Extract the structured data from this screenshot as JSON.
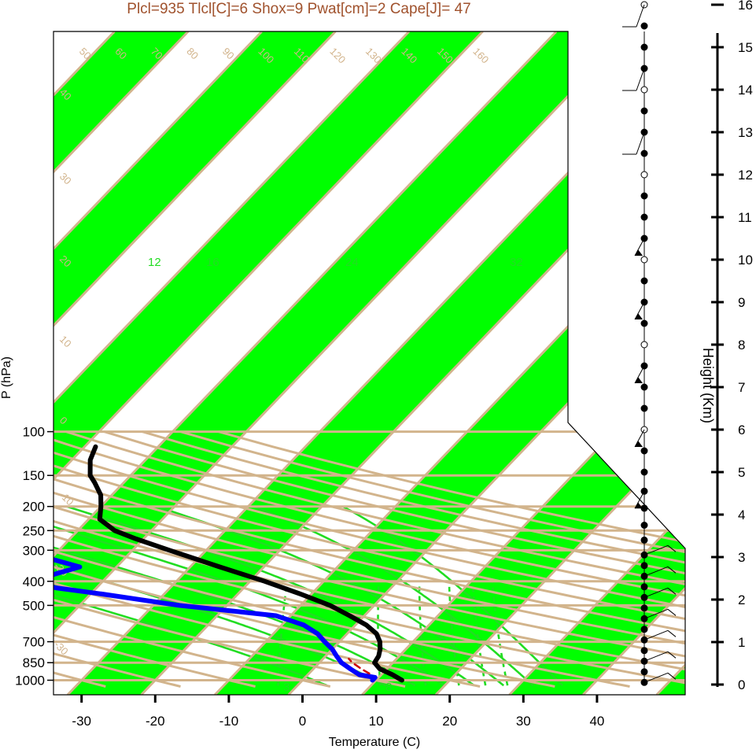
{
  "title": "Plcl=935 Tlcl[C]=6 Shox=9 Pwat[cm]=2 Cape[J]= 47",
  "colors": {
    "band": "#00ff00",
    "isoline": "#d2b48c",
    "temperature": "#000000",
    "dewpoint": "#0000ff",
    "parcel": "#cc0000",
    "moist_adiabat": "#22dd22",
    "title": "#a0522d"
  },
  "chart_data": {
    "type": "skew-t",
    "xlabel": "Temperature (C)",
    "ylabel": "P (hPa)",
    "y2label": "Height (Km)",
    "xlim": [
      -33,
      52
    ],
    "ylim": [
      1050,
      100
    ],
    "x_ticks": [
      "-30",
      "-20",
      "-10",
      "0",
      "10",
      "20",
      "30",
      "40"
    ],
    "p_ticks": [
      "100",
      "150",
      "200",
      "250",
      "300",
      "400",
      "500",
      "700",
      "850",
      "1000"
    ],
    "height_ticks": [
      "0",
      "1",
      "2",
      "3",
      "4",
      "5",
      "6",
      "7",
      "8",
      "9",
      "10",
      "11",
      "12",
      "13",
      "14",
      "15",
      "16"
    ],
    "temperature_profile": [
      {
        "p": 1000,
        "t": 13.5
      },
      {
        "p": 950,
        "t": 11.5
      },
      {
        "p": 900,
        "t": 9.0
      },
      {
        "p": 850,
        "t": 7.5
      },
      {
        "p": 800,
        "t": 7.2
      },
      {
        "p": 750,
        "t": 6.5
      },
      {
        "p": 700,
        "t": 5.5
      },
      {
        "p": 650,
        "t": 4.0
      },
      {
        "p": 600,
        "t": 1.5
      },
      {
        "p": 550,
        "t": -2.0
      },
      {
        "p": 500,
        "t": -6.0
      },
      {
        "p": 450,
        "t": -11.5
      },
      {
        "p": 400,
        "t": -18.0
      },
      {
        "p": 350,
        "t": -26.0
      },
      {
        "p": 300,
        "t": -35.0
      },
      {
        "p": 270,
        "t": -41.0
      },
      {
        "p": 250,
        "t": -45.0
      },
      {
        "p": 225,
        "t": -48.5
      },
      {
        "p": 200,
        "t": -50.0
      },
      {
        "p": 180,
        "t": -51.5
      },
      {
        "p": 160,
        "t": -54.0
      },
      {
        "p": 150,
        "t": -55.5
      },
      {
        "p": 130,
        "t": -57.5
      },
      {
        "p": 115,
        "t": -58.5
      }
    ],
    "dewpoint_profile": [
      {
        "p": 1000,
        "t": 9.5
      },
      {
        "p": 975,
        "t": 9.5
      },
      {
        "p": 950,
        "t": 7.0
      },
      {
        "p": 900,
        "t": 5.0
      },
      {
        "p": 850,
        "t": 3.0
      },
      {
        "p": 800,
        "t": 1.5
      },
      {
        "p": 750,
        "t": 0.0
      },
      {
        "p": 700,
        "t": -2.0
      },
      {
        "p": 650,
        "t": -4.0
      },
      {
        "p": 600,
        "t": -7.0
      },
      {
        "p": 550,
        "t": -12.0
      },
      {
        "p": 525,
        "t": -19.0
      },
      {
        "p": 500,
        "t": -26.5
      },
      {
        "p": 450,
        "t": -38.5
      },
      {
        "p": 425,
        "t": -45.5
      },
      {
        "p": 400,
        "t": -49.5
      },
      {
        "p": 375,
        "t": -47.5
      },
      {
        "p": 350,
        "t": -45.0
      },
      {
        "p": 320,
        "t": -51.0
      },
      {
        "p": 300,
        "t": -55.0
      },
      {
        "p": 270,
        "t": -61.0
      },
      {
        "p": 250,
        "t": -65.0
      },
      {
        "p": 230,
        "t": -69.0
      },
      {
        "p": 210,
        "t": -75.0
      },
      {
        "p": 200,
        "t": -78.0
      },
      {
        "p": 170,
        "t": -83.0
      },
      {
        "p": 150,
        "t": -86.0
      },
      {
        "p": 130,
        "t": -89.0
      },
      {
        "p": 115,
        "t": -91.0
      }
    ],
    "parcel_path": [
      {
        "p": 940,
        "t": 8.2
      },
      {
        "p": 900,
        "t": 6.5
      },
      {
        "p": 850,
        "t": 4.5
      },
      {
        "p": 820,
        "t": 3.5
      }
    ],
    "isotherm_labels": [
      "-30",
      "-20",
      "-10",
      "0",
      "10",
      "20",
      "30",
      "40",
      "50",
      "60",
      "70",
      "80",
      "90",
      "100",
      "110",
      "120",
      "130",
      "140",
      "150",
      "160"
    ],
    "right_isotherm_labels": [
      "-30",
      "-20",
      "-10",
      "0",
      "10",
      "20",
      "30"
    ],
    "left_isotherm_labels": [
      "40",
      "30",
      "20",
      "10",
      "0",
      "-10",
      "-20",
      "-30"
    ],
    "mixing_ratio_labels": [
      "3",
      "8",
      "12",
      "16",
      "24",
      "32"
    ],
    "wind_barb_heights_km": [
      0.05,
      0.3,
      0.55,
      0.8,
      1.05,
      1.3,
      1.55,
      1.8,
      2.05,
      2.3,
      2.55,
      2.8,
      3.05,
      3.4,
      3.75,
      4.15,
      4.55,
      5.0,
      5.5,
      6.0,
      6.5,
      7.0,
      7.5,
      8.0,
      8.5,
      9.0,
      9.5,
      10.0,
      10.5,
      11.0,
      11.5,
      12.0,
      12.5,
      13.0,
      13.5,
      14.0,
      14.5,
      15.0,
      15.5,
      16.0
    ]
  }
}
